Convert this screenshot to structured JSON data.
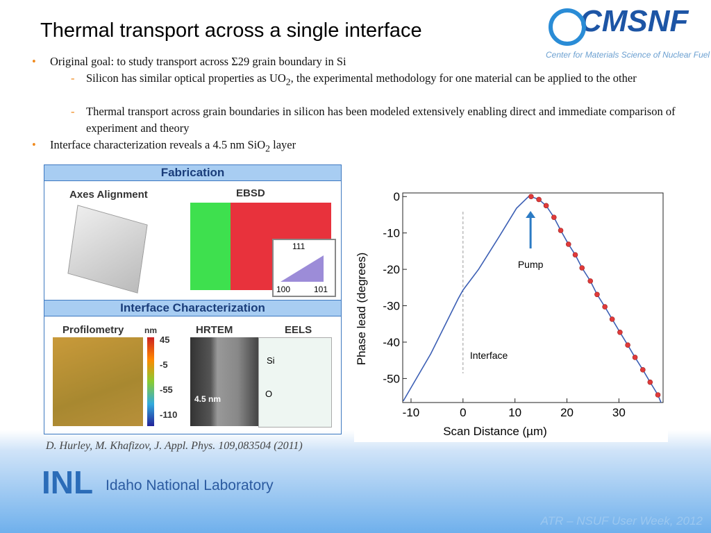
{
  "header": {
    "title": "Thermal transport across a single interface",
    "logo": "CMSNF",
    "logo_subtitle": "Center for Materials Science of Nuclear Fuel"
  },
  "bullets": [
    {
      "text": "Original goal: to study transport across Σ29 grain boundary in Si",
      "sub": [
        [
          "Silicon has similar optical properties as UO",
          "2",
          ", the experimental methodology for one material can be applied to the other"
        ],
        [
          "Thermal transport across grain boundaries in silicon has been modeled extensively enabling direct and immediate comparison of experiment and theory"
        ]
      ]
    },
    {
      "parts": [
        "Interface characterization reveals a 4.5 nm SiO",
        "2",
        " layer"
      ]
    }
  ],
  "figure": {
    "fabrication": "Fabrication",
    "axes": "Axes Alignment",
    "ebsd": "EBSD",
    "ipf": [
      "111",
      "100",
      "101"
    ],
    "interface": "Interface Characterization",
    "profilometry": "Profilometry",
    "unit": "nm",
    "colorbar": [
      "45",
      "-5",
      "-55",
      "-110"
    ],
    "hrtem": "HRTEM",
    "eels": "EELS",
    "thickness": "4.5 nm",
    "si": "Si",
    "o": "O"
  },
  "citation": "D. Hurley, M. Khafizov, J. Appl. Phys. 109,083504 (2011)",
  "footer": {
    "lab": "Idaho National Laboratory",
    "lab_abbr": "INL",
    "event": "ATR – NSUF User Week, 2012"
  },
  "chart_data": {
    "type": "line",
    "xlabel": "Scan Distance (µm)",
    "ylabel": "Phase lead (degrees)",
    "xlim": [
      -11.6,
      38.5
    ],
    "ylim": [
      -56.6,
      1
    ],
    "xticks": [
      -10,
      0,
      10,
      20,
      30
    ],
    "yticks": [
      0,
      -10,
      -20,
      -30,
      -40,
      -50
    ],
    "annotations": [
      {
        "text": "Pump",
        "x": 13
      },
      {
        "text": "Interface",
        "x": 0
      }
    ],
    "series": [
      {
        "color": "#3c5fb4",
        "x": [
          -11.5,
          -6.2,
          -0.9,
          0,
          3,
          7,
          10.3,
          12.6,
          13.1,
          14.6,
          16,
          17.5,
          18.8,
          20.3,
          21.6,
          22.9,
          24.5,
          25.8,
          27.3,
          28.7,
          30.2,
          31.7,
          33.1,
          34.6,
          36,
          37.5,
          38.1
        ],
        "values": [
          -56.2,
          -43.2,
          -28,
          -25.7,
          -20,
          -10.9,
          -3.2,
          0,
          0,
          -0.8,
          -2.5,
          -5.7,
          -9.3,
          -13.1,
          -16,
          -19.6,
          -23.2,
          -26.9,
          -30.3,
          -33.7,
          -37.3,
          -40.8,
          -44.2,
          -47.6,
          -51,
          -54.5,
          -56.6
        ]
      },
      {
        "color": "#e03a3a",
        "marker": true,
        "x": [
          13.1,
          14.6,
          16,
          17.5,
          18.8,
          20.3,
          21.6,
          22.9,
          24.5,
          25.8,
          27.3,
          28.7,
          30.2,
          31.7,
          33.1,
          34.6,
          36,
          37.5
        ],
        "values": [
          0,
          -0.8,
          -2.5,
          -5.7,
          -9.3,
          -13.1,
          -16,
          -19.6,
          -23.2,
          -26.9,
          -30.3,
          -33.7,
          -37.3,
          -40.8,
          -44.2,
          -47.6,
          -51,
          -54.5
        ]
      }
    ]
  }
}
